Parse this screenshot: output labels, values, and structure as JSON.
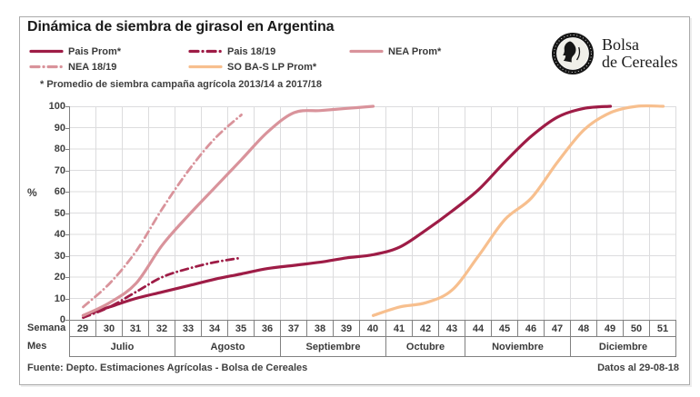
{
  "page": {
    "footer": {
      "left": "Fuente: Depto. Estimaciones Agrícolas - Bolsa de Cereales",
      "right": "Datos al 29-08-18"
    },
    "logo": {
      "line1": "Bolsa",
      "line2": "de Cereales",
      "icon": "bolsa-de-cereales-seal"
    }
  },
  "colors": {
    "maroon": "#9E1C46",
    "pink": "#D9939B",
    "orange": "#F7BF8E",
    "gridline": "#DCDCDE",
    "axis_line": "#808080",
    "text_dark": "#404040"
  },
  "chart_data": {
    "type": "line",
    "title": "Dinámica de siembra de girasol en Argentina",
    "note": "* Promedio de siembra campaña agrícola 2013/14 a 2017/18",
    "ylabel": "%",
    "ylim": [
      0,
      100
    ],
    "ytick_step": 10,
    "grid": true,
    "legend_position": "top-left",
    "x_axis_label": "Semana",
    "month_axis_label": "Mes",
    "weeks": [
      29,
      30,
      31,
      32,
      33,
      34,
      35,
      36,
      37,
      38,
      39,
      40,
      41,
      42,
      43,
      44,
      45,
      46,
      47,
      48,
      49,
      50,
      51
    ],
    "months": [
      {
        "label": "Julio",
        "n_weeks": 4
      },
      {
        "label": "Agosto",
        "n_weeks": 4
      },
      {
        "label": "Septiembre",
        "n_weeks": 4
      },
      {
        "label": "Octubre",
        "n_weeks": 3
      },
      {
        "label": "Noviembre",
        "n_weeks": 4
      },
      {
        "label": "Diciembre",
        "n_weeks": 4
      }
    ],
    "series": [
      {
        "name": "Pais Prom*",
        "color_key": "maroon",
        "style": "solid",
        "start_week": 29,
        "values": [
          2,
          6,
          10,
          13,
          16,
          19,
          21.5,
          24,
          25.5,
          27,
          29,
          30.5,
          34,
          42,
          51,
          61,
          74,
          86,
          95,
          99,
          100
        ]
      },
      {
        "name": "Pais 18/19",
        "color_key": "maroon",
        "style": "dashed",
        "start_week": 29,
        "values": [
          1,
          6,
          13,
          20,
          24,
          27,
          29
        ]
      },
      {
        "name": "NEA Prom*",
        "color_key": "pink",
        "style": "solid",
        "start_week": 29,
        "values": [
          2,
          8,
          17,
          35,
          49,
          62,
          75,
          88,
          97,
          98,
          99,
          100
        ]
      },
      {
        "name": "NEA 18/19",
        "color_key": "pink",
        "style": "dashed",
        "start_week": 29,
        "values": [
          6,
          17,
          32,
          52,
          70,
          85,
          96
        ]
      },
      {
        "name": "SO BA-S LP Prom*",
        "color_key": "orange",
        "style": "solid",
        "start_week": 40,
        "values": [
          2,
          6,
          8,
          14,
          30,
          47,
          57,
          74,
          89,
          97,
          100,
          100
        ]
      }
    ]
  }
}
